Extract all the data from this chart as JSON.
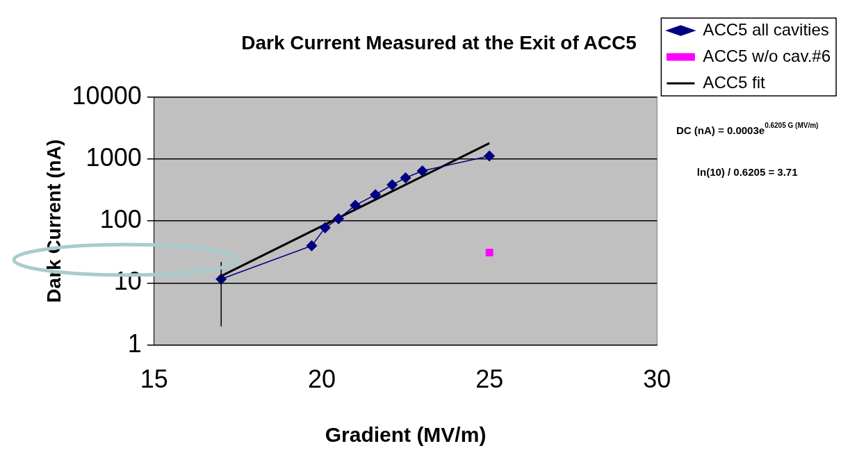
{
  "chart_data": {
    "type": "line",
    "title": "Dark Current Measured at the Exit of ACC5",
    "xlabel": "Gradient (MV/m)",
    "ylabel": "Dark Current (nA)",
    "log": "y",
    "xlim": [
      15,
      30
    ],
    "xticks": [
      15,
      20,
      25,
      30
    ],
    "ylim": [
      1,
      10000
    ],
    "yticks": [
      1,
      10,
      100,
      1000,
      10000
    ],
    "grid": "y",
    "legend": "right",
    "series": [
      {
        "name": "ACC5 all cavities",
        "color": "#000080",
        "marker": "diamond",
        "x": [
          17.0,
          19.7,
          20.1,
          20.5,
          21.0,
          21.6,
          22.1,
          22.5,
          23.0,
          25.0
        ],
        "values": [
          11.6,
          40,
          78,
          109,
          179,
          266,
          383,
          497,
          644,
          1120
        ],
        "errors": [
          [
            2,
            22
          ],
          null,
          null,
          null,
          null,
          null,
          null,
          null,
          null,
          null
        ]
      },
      {
        "name": "ACC5 w/o cav.#6",
        "type": "scatter",
        "color": "#ff00ff",
        "marker": "square",
        "x": [
          25.0
        ],
        "values": [
          31
        ]
      },
      {
        "name": "ACC5 fit",
        "color": "#000000",
        "marker": "none",
        "x": [
          17.0,
          25.0
        ],
        "values": [
          13,
          1800
        ]
      }
    ],
    "annotations": [
      "DC (nA) = 0.0003e$^{0.6205 G (MV/m)}$",
      "ln(10) / 0.6205 = 3.71"
    ]
  }
}
